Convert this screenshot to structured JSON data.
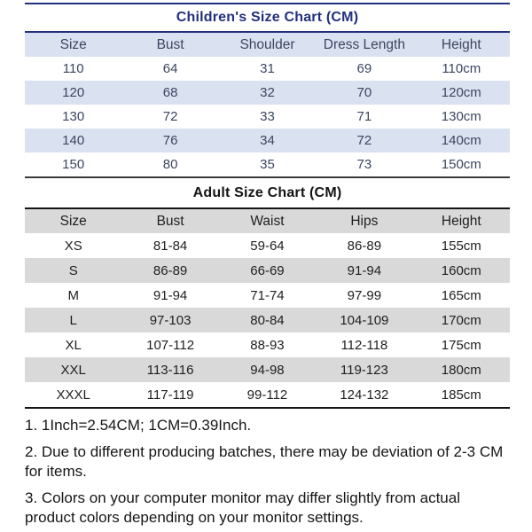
{
  "children_chart": {
    "title": "Children's Size Chart (CM)",
    "columns": [
      "Size",
      "Bust",
      "Shoulder",
      "Dress Length",
      "Height"
    ],
    "rows": [
      [
        "110",
        "64",
        "31",
        "69",
        "110cm"
      ],
      [
        "120",
        "68",
        "32",
        "70",
        "120cm"
      ],
      [
        "130",
        "72",
        "33",
        "71",
        "130cm"
      ],
      [
        "140",
        "76",
        "34",
        "72",
        "140cm"
      ],
      [
        "150",
        "80",
        "35",
        "73",
        "150cm"
      ]
    ]
  },
  "adult_chart": {
    "title": "Adult Size Chart (CM)",
    "columns": [
      "Size",
      "Bust",
      "Waist",
      "Hips",
      "Height"
    ],
    "rows": [
      [
        "XS",
        "81-84",
        "59-64",
        "86-89",
        "155cm"
      ],
      [
        "S",
        "86-89",
        "66-69",
        "91-94",
        "160cm"
      ],
      [
        "M",
        "91-94",
        "71-74",
        "97-99",
        "165cm"
      ],
      [
        "L",
        "97-103",
        "80-84",
        "104-109",
        "170cm"
      ],
      [
        "XL",
        "107-112",
        "88-93",
        "112-118",
        "175cm"
      ],
      [
        "XXL",
        "113-116",
        "94-98",
        "119-123",
        "180cm"
      ],
      [
        "XXXL",
        "117-119",
        "99-112",
        "124-132",
        "185cm"
      ]
    ]
  },
  "notes": [
    "1. 1Inch=2.54CM; 1CM=0.39Inch.",
    "2. Due to different producing batches, there may be deviation of 2-3 CM for items.",
    "3. Colors on your computer monitor may differ slightly from actual product colors depending on your monitor settings."
  ],
  "colors": {
    "children_accent": "#22317e",
    "children_tint": "#dae1f1",
    "children_text": "#3d4660",
    "adult_accent": "#141414",
    "adult_tint": "#d9d9d9",
    "adult_text": "#1f1f1f",
    "divider_dark": "#3a3a3a"
  }
}
